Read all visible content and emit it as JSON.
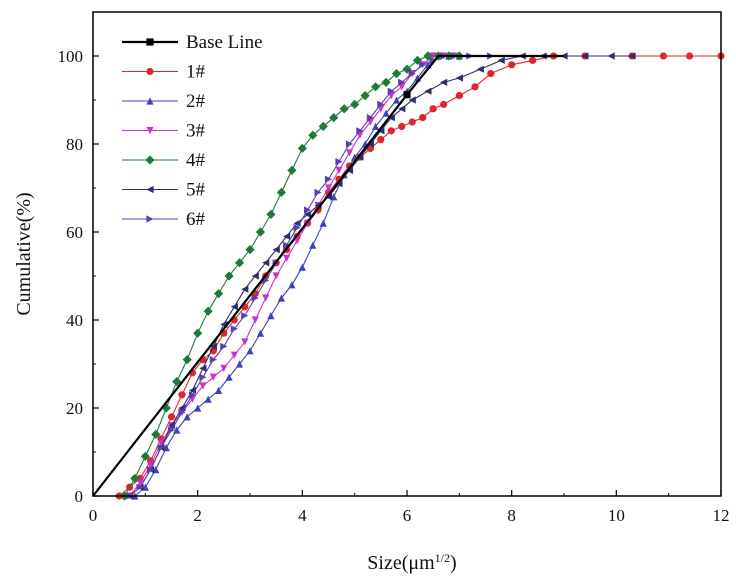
{
  "chart_data": {
    "type": "line",
    "title": "",
    "xlabel_base": "Size(μm",
    "xlabel_sup": "1/2",
    "xlabel_close": ")",
    "ylabel": "Cumulative(%)",
    "xlim": [
      0,
      12
    ],
    "ylim": [
      0,
      110
    ],
    "x_ticks": [
      0,
      2,
      4,
      6,
      8,
      10,
      12
    ],
    "y_ticks": [
      0,
      20,
      40,
      60,
      80,
      100
    ],
    "grid": false,
    "legend_position": "top-left",
    "series": [
      {
        "name": "Base Line",
        "color": "#000000",
        "marker": "square",
        "x": [
          0,
          1,
          2,
          3,
          4,
          5,
          6,
          6.6,
          7,
          8,
          9
        ],
        "y": [
          0,
          15.2,
          30.4,
          45.6,
          60.8,
          76.0,
          91.2,
          100,
          100,
          100,
          100
        ]
      },
      {
        "name": "1#",
        "color": "#e0262b",
        "marker": "circle",
        "x": [
          0.5,
          0.7,
          0.9,
          1.1,
          1.3,
          1.5,
          1.7,
          1.9,
          2.1,
          2.3,
          2.5,
          2.7,
          2.9,
          3.1,
          3.3,
          3.5,
          3.7,
          3.9,
          4.1,
          4.3,
          4.5,
          4.7,
          4.9,
          5.1,
          5.3,
          5.5,
          5.7,
          5.9,
          6.1,
          6.3,
          6.5,
          6.7,
          7.0,
          7.3,
          7.6,
          8.0,
          8.4,
          8.8,
          9.4,
          10.3,
          10.9,
          11.4,
          12.0
        ],
        "y": [
          0,
          2,
          4,
          8,
          13,
          18,
          23,
          28,
          31,
          33,
          37,
          40,
          43,
          46,
          50,
          53,
          56,
          59,
          62,
          65,
          69,
          72,
          75,
          77,
          79,
          81,
          83,
          84,
          85,
          86,
          88,
          89,
          91,
          93,
          96,
          98,
          99,
          100,
          100,
          100,
          100,
          100,
          100
        ]
      },
      {
        "name": "2#",
        "color": "#3a43b8",
        "marker": "triangle-up",
        "x": [
          0.8,
          1.0,
          1.2,
          1.4,
          1.6,
          1.8,
          2.0,
          2.2,
          2.4,
          2.6,
          2.8,
          3.0,
          3.2,
          3.4,
          3.6,
          3.8,
          4.0,
          4.2,
          4.4,
          4.6,
          4.8,
          5.0,
          5.2,
          5.4,
          5.6,
          5.8,
          6.0,
          6.2,
          6.4,
          6.6,
          6.8,
          7.0
        ],
        "y": [
          0,
          2,
          6,
          11,
          15,
          18,
          20,
          22,
          24,
          27,
          30,
          33,
          37,
          41,
          45,
          48,
          52,
          57,
          62,
          68,
          73,
          77,
          80,
          84,
          87,
          90,
          92,
          95,
          98,
          100,
          100,
          100
        ]
      },
      {
        "name": "3#",
        "color": "#cc33cc",
        "marker": "triangle-down",
        "x": [
          0.7,
          0.9,
          1.1,
          1.3,
          1.5,
          1.7,
          1.9,
          2.1,
          2.3,
          2.5,
          2.7,
          2.9,
          3.1,
          3.3,
          3.5,
          3.7,
          3.9,
          4.1,
          4.3,
          4.5,
          4.7,
          4.9,
          5.1,
          5.3,
          5.5,
          5.7,
          5.9,
          6.1,
          6.3,
          6.5,
          6.7,
          6.9
        ],
        "y": [
          0,
          3,
          7,
          12,
          16,
          19,
          22,
          25,
          27,
          29,
          32,
          35,
          40,
          45,
          50,
          54,
          58,
          62,
          66,
          70,
          74,
          78,
          82,
          85,
          88,
          91,
          93,
          96,
          98,
          100,
          100,
          100
        ]
      },
      {
        "name": "4#",
        "color": "#1f7a3a",
        "marker": "diamond",
        "x": [
          0.6,
          0.8,
          1.0,
          1.2,
          1.4,
          1.6,
          1.8,
          2.0,
          2.2,
          2.4,
          2.6,
          2.8,
          3.0,
          3.2,
          3.4,
          3.6,
          3.8,
          4.0,
          4.2,
          4.4,
          4.6,
          4.8,
          5.0,
          5.2,
          5.4,
          5.6,
          5.8,
          6.0,
          6.2,
          6.4,
          6.6,
          6.8,
          7.0
        ],
        "y": [
          0,
          4,
          9,
          14,
          20,
          26,
          31,
          37,
          42,
          46,
          50,
          53,
          56,
          60,
          64,
          69,
          74,
          79,
          82,
          84,
          86,
          88,
          89,
          91,
          93,
          94,
          96,
          97,
          99,
          100,
          100,
          100,
          100
        ]
      },
      {
        "name": "5#",
        "color": "#2b2f6e",
        "marker": "triangle-left",
        "x": [
          0.7,
          0.9,
          1.1,
          1.3,
          1.5,
          1.7,
          1.9,
          2.1,
          2.3,
          2.5,
          2.7,
          2.9,
          3.1,
          3.3,
          3.5,
          3.7,
          3.9,
          4.1,
          4.3,
          4.5,
          4.7,
          4.9,
          5.1,
          5.3,
          5.5,
          5.7,
          5.9,
          6.1,
          6.4,
          6.7,
          7.0,
          7.4,
          7.8,
          8.2,
          8.6,
          9.0,
          9.4,
          9.9,
          10.3
        ],
        "y": [
          0,
          2,
          6,
          11,
          16,
          20,
          24,
          29,
          34,
          39,
          43,
          47,
          50,
          53,
          56,
          59,
          62,
          64,
          66,
          68,
          71,
          74,
          77,
          80,
          83,
          86,
          88,
          90,
          92,
          94,
          95,
          97,
          99,
          100,
          100,
          100,
          100,
          100,
          100
        ]
      },
      {
        "name": "6#",
        "color": "#5b3fb0",
        "marker": "triangle-right",
        "x": [
          0.7,
          0.9,
          1.1,
          1.3,
          1.5,
          1.7,
          1.9,
          2.1,
          2.3,
          2.5,
          2.7,
          2.9,
          3.1,
          3.3,
          3.5,
          3.7,
          3.9,
          4.1,
          4.3,
          4.5,
          4.7,
          4.9,
          5.1,
          5.3,
          5.5,
          5.7,
          5.9,
          6.1,
          6.3,
          6.5,
          6.7,
          6.9,
          7.2,
          7.6
        ],
        "y": [
          0,
          2,
          6,
          11,
          15,
          19,
          23,
          27,
          31,
          34,
          38,
          41,
          45,
          49,
          53,
          57,
          61,
          65,
          69,
          72,
          76,
          80,
          83,
          86,
          89,
          92,
          94,
          96,
          98,
          99,
          100,
          100,
          100,
          100
        ]
      }
    ]
  }
}
